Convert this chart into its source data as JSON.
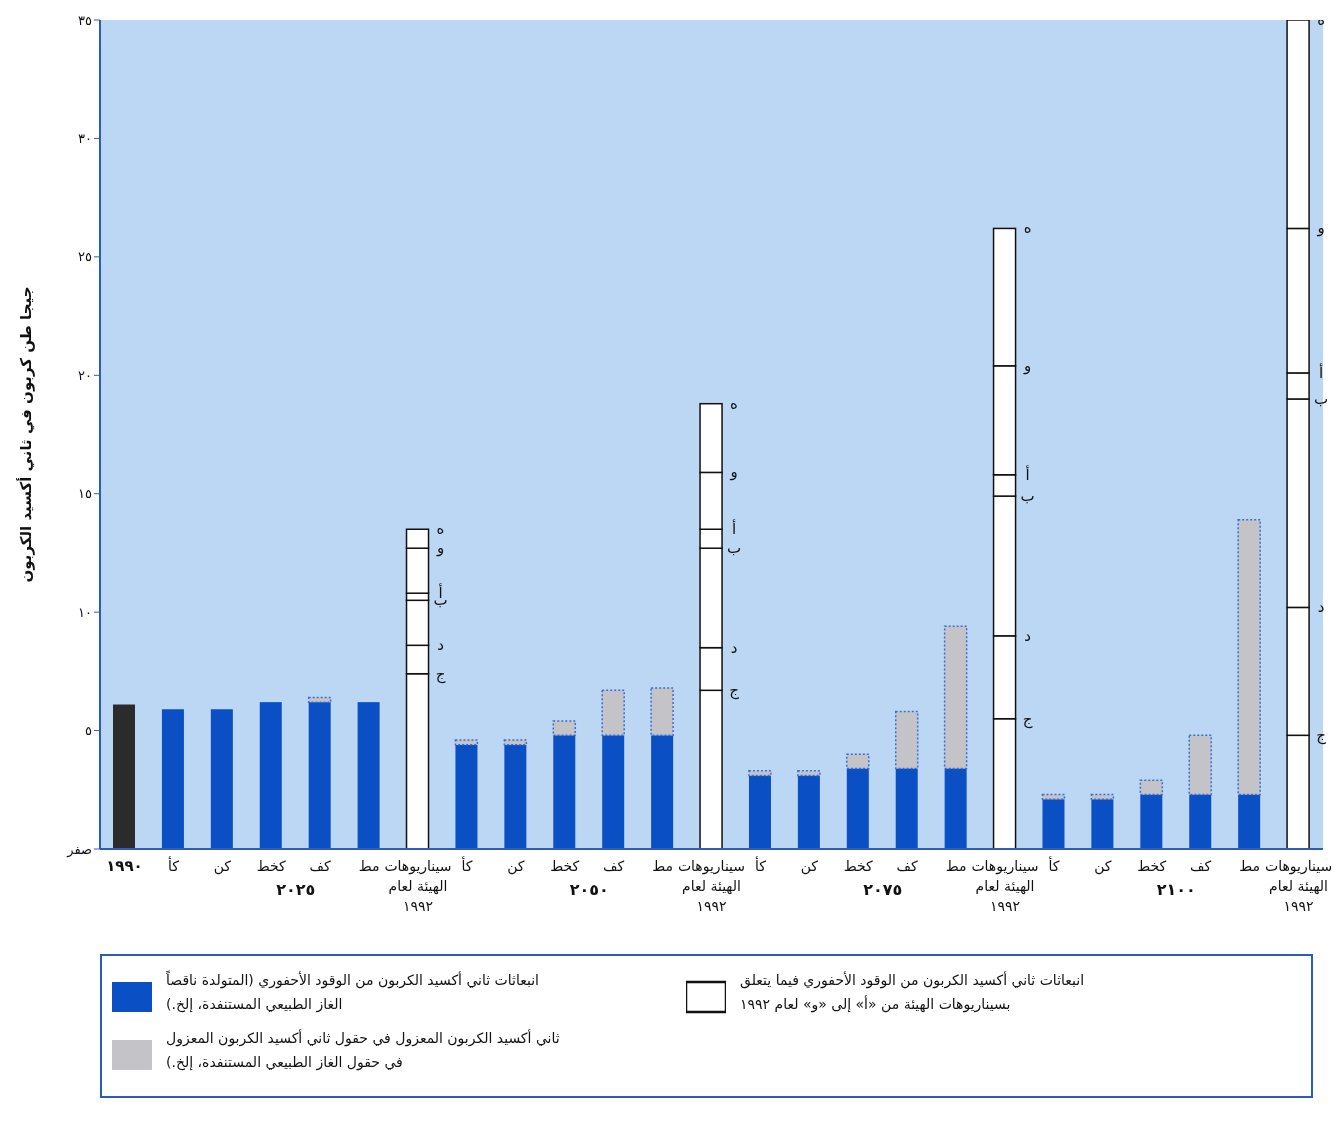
{
  "chart_data": {
    "type": "bar",
    "stacked": true,
    "ylabel": "جيجا طن كربون في ثاني أكسيد الكربون",
    "categories": [
      "١٩٩٠",
      "كأ",
      "كن",
      "كخط",
      "كف",
      "مط",
      "سيناريوهات الهيئة لعام ١٩٩٢",
      "كأ",
      "كن",
      "كخط",
      "كف",
      "مط",
      "سيناريوهات الهيئة لعام ١٩٩٢",
      "كأ",
      "كن",
      "كخط",
      "كف",
      "مط",
      "سيناريوهات الهيئة لعام ١٩٩٢",
      "كأ",
      "كن",
      "كخط",
      "كف",
      "مط",
      "سيناريوهات الهيئة لعام ١٩٩٢"
    ],
    "ylim": [
      0,
      35
    ],
    "yticks": [
      {
        "value": 0,
        "label": "صفر"
      },
      {
        "value": 5,
        "label": "٥"
      },
      {
        "value": 10,
        "label": "١٠"
      },
      {
        "value": 15,
        "label": "١٥"
      },
      {
        "value": 20,
        "label": "٢٠"
      },
      {
        "value": 25,
        "label": "٢٥"
      },
      {
        "value": 30,
        "label": "٣٠"
      },
      {
        "value": 35,
        "label": "٣٥"
      }
    ],
    "legend": "bottom",
    "annotations": [
      "٢٠٢٥",
      "٢٠٥٠",
      "٢٠٧٥",
      "٢١٠٠"
    ],
    "series": [
      {
        "name": "انبعاثات ثاني أكسيد الكربون من الوقود الأحفوري (المتولدة ناقصاً الغاز الطبيعي المستنفدة، إلخ.)",
        "color": "#0a4fc4",
        "colors": [
          "#2b2b2b",
          "#0a4fc4",
          "#0a4fc4",
          "#0a4fc4",
          "#0a4fc4",
          "#0a4fc4",
          "#0a4fc4",
          "#0a4fc4",
          "#0a4fc4",
          "#0a4fc4",
          "#0a4fc4",
          "#0a4fc4",
          "#0a4fc4",
          "#0a4fc4",
          "#0a4fc4",
          "#0a4fc4",
          "#0a4fc4",
          "#0a4fc4",
          "#0a4fc4",
          "#0a4fc4",
          "#0a4fc4",
          "#0a4fc4",
          "#0a4fc4",
          "#0a4fc4",
          "#0a4fc4"
        ],
        "values": [
          6.1,
          5.9,
          5.9,
          6.2,
          6.2,
          6.2,
          null,
          4.4,
          4.4,
          4.8,
          4.8,
          4.8,
          null,
          3.1,
          3.1,
          3.4,
          3.4,
          3.4,
          null,
          2.1,
          2.1,
          2.3,
          2.3,
          2.3,
          null
        ]
      },
      {
        "name": "ثاني أكسيد الكربون المعزول في حقول ثاني أكسيد الكربون المعزول في حقول الغاز الطبيعي المستنفدة، إلخ.)",
        "color": "#c4c4c8",
        "values": [
          null,
          null,
          null,
          null,
          0.2,
          null,
          null,
          0.2,
          0.2,
          0.6,
          1.9,
          2.0,
          null,
          0.2,
          0.2,
          0.6,
          2.4,
          6.0,
          null,
          0.2,
          0.2,
          0.6,
          2.5,
          11.6,
          null
        ]
      },
      {
        "name": "انبعاثات ثاني أكسيد الكربون من الوقود الأحفوري فيما يتعلق بسيناريوهات الهيئة من «أ» إلى «و» لعام ١٩٩٢",
        "color": "#ffffff",
        "values": [
          null,
          null,
          null,
          null,
          null,
          null,
          7.4,
          null,
          null,
          null,
          null,
          null,
          6.7,
          null,
          null,
          null,
          null,
          null,
          5.5,
          null,
          null,
          null,
          null,
          null,
          4.8
        ],
        "value_labels": [
          null,
          null,
          null,
          null,
          null,
          null,
          "ج",
          null,
          null,
          null,
          null,
          null,
          "ج",
          null,
          null,
          null,
          null,
          null,
          "ج",
          null,
          null,
          null,
          null,
          null,
          "ج"
        ]
      },
      {
        "color": "#ffffff",
        "values": [
          null,
          null,
          null,
          null,
          null,
          null,
          1.2,
          null,
          null,
          null,
          null,
          null,
          1.8,
          null,
          null,
          null,
          null,
          null,
          3.5,
          null,
          null,
          null,
          null,
          null,
          5.4
        ],
        "value_labels": [
          null,
          null,
          null,
          null,
          null,
          null,
          "د",
          null,
          null,
          null,
          null,
          null,
          "د",
          null,
          null,
          null,
          null,
          null,
          "د",
          null,
          null,
          null,
          null,
          null,
          "د"
        ]
      },
      {
        "color": "#ffffff",
        "values": [
          null,
          null,
          null,
          null,
          null,
          null,
          1.9,
          null,
          null,
          null,
          null,
          null,
          4.2,
          null,
          null,
          null,
          null,
          null,
          5.9,
          null,
          null,
          null,
          null,
          null,
          8.8
        ],
        "value_labels": [
          null,
          null,
          null,
          null,
          null,
          null,
          "ب",
          null,
          null,
          null,
          null,
          null,
          "ب",
          null,
          null,
          null,
          null,
          null,
          "ب",
          null,
          null,
          null,
          null,
          null,
          "ب"
        ]
      },
      {
        "color": "#ffffff",
        "values": [
          null,
          null,
          null,
          null,
          null,
          null,
          0.3,
          null,
          null,
          null,
          null,
          null,
          0.8,
          null,
          null,
          null,
          null,
          null,
          0.9,
          null,
          null,
          null,
          null,
          null,
          1.1
        ],
        "value_labels": [
          null,
          null,
          null,
          null,
          null,
          null,
          "أ",
          null,
          null,
          null,
          null,
          null,
          "أ",
          null,
          null,
          null,
          null,
          null,
          "أ",
          null,
          null,
          null,
          null,
          null,
          "أ"
        ]
      },
      {
        "color": "#ffffff",
        "values": [
          null,
          null,
          null,
          null,
          null,
          null,
          1.9,
          null,
          null,
          null,
          null,
          null,
          2.4,
          null,
          null,
          null,
          null,
          null,
          4.6,
          null,
          null,
          null,
          null,
          null,
          6.1
        ],
        "value_labels": [
          null,
          null,
          null,
          null,
          null,
          null,
          "و",
          null,
          null,
          null,
          null,
          null,
          "و",
          null,
          null,
          null,
          null,
          null,
          "و",
          null,
          null,
          null,
          null,
          null,
          "و"
        ]
      },
      {
        "color": "#ffffff",
        "values": [
          null,
          null,
          null,
          null,
          null,
          null,
          0.8,
          null,
          null,
          null,
          null,
          null,
          2.9,
          null,
          null,
          null,
          null,
          null,
          5.8,
          null,
          null,
          null,
          null,
          null,
          8.8
        ],
        "value_labels": [
          null,
          null,
          null,
          null,
          null,
          null,
          "ه",
          null,
          null,
          null,
          null,
          null,
          "ه",
          null,
          null,
          null,
          null,
          null,
          "ه",
          null,
          null,
          null,
          null,
          null,
          "ه"
        ]
      }
    ]
  }
}
